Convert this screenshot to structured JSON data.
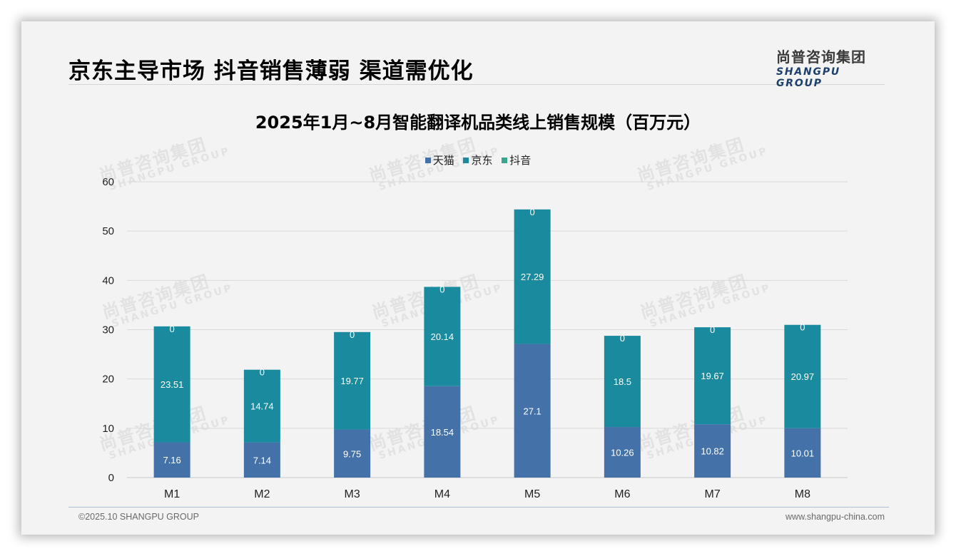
{
  "page": {
    "title": "京东主导市场 抖音销售薄弱 渠道需优化",
    "logo_cn": "尚普咨询集团",
    "logo_en": "SHANGPU GROUP",
    "watermark_cn": "尚普咨询集团",
    "watermark_en": "SHANGPU GROUP",
    "footer_left": "©2025.10 SHANGPU GROUP",
    "footer_right": "www.shangpu-china.com"
  },
  "colors": {
    "tmall": "#4472a8",
    "jd": "#1a8a9e",
    "douyin": "#3aa58e"
  },
  "chart_data": {
    "type": "bar",
    "stacked": true,
    "title": "2025年1月~8月智能翻译机品类线上销售规模（百万元）",
    "xlabel": "",
    "ylabel": "",
    "categories": [
      "M1",
      "M2",
      "M3",
      "M4",
      "M5",
      "M6",
      "M7",
      "M8"
    ],
    "series": [
      {
        "name": "天猫",
        "values": [
          7.16,
          7.14,
          9.75,
          18.54,
          27.1,
          10.26,
          10.82,
          10.01
        ]
      },
      {
        "name": "京东",
        "values": [
          23.51,
          14.74,
          19.77,
          20.14,
          27.29,
          18.5,
          19.67,
          20.97
        ]
      },
      {
        "name": "抖音",
        "values": [
          0,
          0,
          0,
          0,
          0,
          0,
          0,
          0
        ]
      }
    ],
    "ylim": [
      0,
      60
    ],
    "yticks": [
      0,
      10,
      20,
      30,
      40,
      50,
      60
    ],
    "grid": true,
    "legend_position": "top-center",
    "data_labels": true
  }
}
